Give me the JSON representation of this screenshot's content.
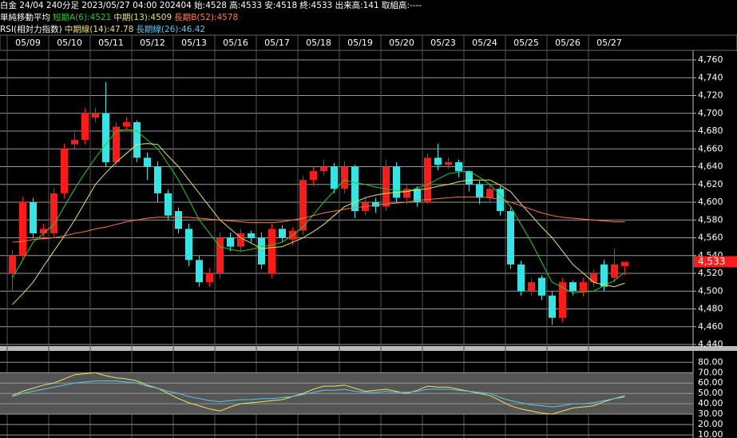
{
  "chart_data": [
    {
      "type": "candlestick",
      "title": "白金 24/04 240分足 2023/05/27 04:00 202404 始:4528 高:4533 安:4518 終:4533 出来高:141 取組高:----",
      "indicator_title": "単純移動平均",
      "up_color": "#ff1a1a",
      "down_color": "#33e6e6",
      "categories": [
        null,
        null,
        "05/09",
        null,
        null,
        null,
        "05/10",
        null,
        null,
        null,
        "05/11",
        null,
        null,
        null,
        "05/12",
        null,
        null,
        null,
        "05/13",
        null,
        null,
        null,
        "05/16",
        null,
        null,
        null,
        "05/17",
        null,
        null,
        null,
        "05/18",
        null,
        null,
        null,
        "05/19",
        null,
        null,
        null,
        "05/20",
        null,
        null,
        null,
        "05/23",
        null,
        null,
        null,
        "05/24",
        null,
        null,
        null,
        "05/25",
        null,
        null,
        null,
        "05/26",
        null,
        null,
        null,
        "05/27",
        null
      ],
      "open": [
        4520,
        4540,
        4600,
        4565,
        4565,
        4610,
        4665,
        4670,
        4695,
        4700,
        4645,
        4685,
        4690,
        4650,
        4640,
        4610,
        4590,
        4570,
        4535,
        4510,
        4520,
        4560,
        4550,
        4565,
        4560,
        4520,
        4570,
        4558,
        4568,
        4625,
        4635,
        4640,
        4615,
        4640,
        4590,
        4600,
        4595,
        4640,
        4605,
        4615,
        4600,
        4650,
        4642,
        4645,
        4635,
        4620,
        4605,
        4615,
        4590,
        4530,
        4500,
        4515,
        4495,
        4470,
        4510,
        4500,
        4510,
        4530,
        4515,
        4528
      ],
      "high": [
        4546,
        4606,
        4605,
        4576,
        4616,
        4666,
        4678,
        4706,
        4706,
        4735,
        4690,
        4696,
        4692,
        4656,
        4646,
        4614,
        4594,
        4576,
        4540,
        4526,
        4566,
        4566,
        4570,
        4568,
        4566,
        4576,
        4574,
        4572,
        4630,
        4640,
        4648,
        4644,
        4646,
        4642,
        4606,
        4605,
        4648,
        4645,
        4620,
        4618,
        4655,
        4666,
        4650,
        4648,
        4636,
        4624,
        4620,
        4618,
        4594,
        4534,
        4514,
        4518,
        4500,
        4515,
        4512,
        4515,
        4524,
        4535,
        4548,
        4533
      ],
      "low": [
        4500,
        4535,
        4560,
        4558,
        4560,
        4604,
        4660,
        4665,
        4690,
        4640,
        4640,
        4680,
        4645,
        4625,
        4600,
        4580,
        4565,
        4528,
        4505,
        4505,
        4515,
        4545,
        4545,
        4555,
        4525,
        4515,
        4555,
        4552,
        4563,
        4618,
        4630,
        4610,
        4610,
        4582,
        4585,
        4588,
        4590,
        4600,
        4598,
        4595,
        4598,
        4636,
        4638,
        4628,
        4612,
        4598,
        4600,
        4585,
        4525,
        4495,
        4495,
        4490,
        4462,
        4465,
        4495,
        4494,
        4505,
        4500,
        4510,
        4518
      ],
      "close": [
        4540,
        4600,
        4565,
        4570,
        4610,
        4660,
        4670,
        4700,
        4700,
        4645,
        4685,
        4690,
        4650,
        4640,
        4610,
        4585,
        4570,
        4535,
        4510,
        4520,
        4560,
        4550,
        4565,
        4560,
        4530,
        4570,
        4560,
        4568,
        4625,
        4635,
        4640,
        4615,
        4640,
        4590,
        4600,
        4595,
        4640,
        4605,
        4615,
        4600,
        4650,
        4642,
        4645,
        4635,
        4620,
        4605,
        4615,
        4590,
        4530,
        4500,
        4510,
        4495,
        4470,
        4510,
        4500,
        4510,
        4520,
        4505,
        4530,
        4533
      ],
      "series": [
        {
          "name": "短期A(6):4521",
          "color": "#22cc22",
          "values": [
            4515,
            4535,
            4555,
            4565,
            4575,
            4595,
            4615,
            4633,
            4650,
            4665,
            4680,
            4682,
            4680,
            4670,
            4660,
            4643,
            4625,
            4603,
            4580,
            4565,
            4550,
            4547,
            4545,
            4547,
            4550,
            4552,
            4555,
            4563,
            4572,
            4586,
            4600,
            4613,
            4625,
            4622,
            4620,
            4617,
            4615,
            4613,
            4612,
            4616,
            4620,
            4626,
            4632,
            4634,
            4635,
            4628,
            4620,
            4608,
            4595,
            4575,
            4555,
            4532,
            4510,
            4504,
            4498,
            4499,
            4500,
            4506,
            4512,
            4521
          ]
        },
        {
          "name": "中期(13):4509",
          "color": "#e6e65c",
          "values": [
            4485,
            4497,
            4510,
            4528,
            4545,
            4562,
            4580,
            4600,
            4620,
            4633,
            4645,
            4655,
            4665,
            4666,
            4665,
            4652,
            4640,
            4625,
            4610,
            4595,
            4580,
            4570,
            4560,
            4554,
            4548,
            4549,
            4550,
            4555,
            4560,
            4567,
            4575,
            4585,
            4595,
            4600,
            4605,
            4608,
            4610,
            4611,
            4612,
            4614,
            4615,
            4618,
            4620,
            4623,
            4625,
            4625,
            4625,
            4619,
            4612,
            4598,
            4585,
            4572,
            4560,
            4545,
            4530,
            4520,
            4510,
            4507,
            4505,
            4509
          ]
        },
        {
          "name": "長期B(52):4578",
          "color": "#ff7a3d",
          "values": [
            4555,
            4556,
            4558,
            4559,
            4560,
            4562,
            4565,
            4567,
            4570,
            4572,
            4575,
            4578,
            4580,
            4582,
            4583,
            4583,
            4583,
            4583,
            4582,
            4581,
            4580,
            4579,
            4578,
            4577,
            4577,
            4577,
            4578,
            4580,
            4582,
            4585,
            4588,
            4590,
            4592,
            4594,
            4595,
            4597,
            4598,
            4599,
            4600,
            4602,
            4603,
            4604,
            4605,
            4606,
            4606,
            4606,
            4605,
            4603,
            4600,
            4596,
            4592,
            4588,
            4585,
            4583,
            4582,
            4581,
            4580,
            4579,
            4578,
            4578
          ]
        }
      ],
      "ylim": [
        4440,
        4760
      ],
      "yticks": [
        {
          "value": 4440,
          "label": "4,440"
        },
        {
          "value": 4460,
          "label": "4,460"
        },
        {
          "value": 4480,
          "label": "4,480"
        },
        {
          "value": 4500,
          "label": "4,500"
        },
        {
          "value": 4520,
          "label": "4,520"
        },
        {
          "value": 4540,
          "label": "4,540"
        },
        {
          "value": 4560,
          "label": "4,560"
        },
        {
          "value": 4580,
          "label": "4,580"
        },
        {
          "value": 4600,
          "label": "4,600"
        },
        {
          "value": 4620,
          "label": "4,620"
        },
        {
          "value": 4640,
          "label": "4,640"
        },
        {
          "value": 4660,
          "label": "4,660"
        },
        {
          "value": 4680,
          "label": "4,680"
        },
        {
          "value": 4700,
          "label": "4,700"
        },
        {
          "value": 4720,
          "label": "4,720"
        },
        {
          "value": 4740,
          "label": "4,740"
        },
        {
          "value": 4760,
          "label": "4,760"
        }
      ],
      "last_price": {
        "value": 4533,
        "label": "4,533"
      },
      "grid": true
    },
    {
      "type": "line",
      "title": "RSI(相対力指数)",
      "series": [
        {
          "name": "中期線(14):47.78",
          "color": "#e6e65c",
          "values": [
            48,
            52,
            55,
            58,
            60,
            64,
            68,
            69,
            70,
            67,
            65,
            64,
            62,
            58,
            55,
            50,
            45,
            41,
            38,
            35,
            33,
            37,
            40,
            41,
            42,
            43,
            44,
            47,
            50,
            54,
            57,
            57,
            58,
            55,
            52,
            53,
            54,
            52,
            50,
            53,
            57,
            56,
            56,
            54,
            52,
            50,
            48,
            43,
            38,
            35,
            33,
            31,
            30,
            33,
            36,
            37,
            38,
            42,
            45,
            47.78
          ]
        },
        {
          "name": "長期線(26):46.42",
          "color": "#55c8f0",
          "values": [
            47,
            50,
            52,
            54,
            56,
            58,
            60,
            61,
            62,
            62,
            62,
            61,
            60,
            57,
            55,
            52,
            50,
            47,
            45,
            43,
            42,
            43,
            44,
            44,
            45,
            45,
            46,
            47,
            49,
            51,
            53,
            53,
            54,
            52,
            51,
            51,
            52,
            51,
            51,
            52,
            54,
            54,
            54,
            53,
            52,
            51,
            50,
            46,
            43,
            41,
            39,
            38,
            37,
            38,
            40,
            40,
            41,
            43,
            45,
            46.42
          ]
        }
      ],
      "ylim": [
        7,
        91
      ],
      "yticks": [
        {
          "value": 10,
          "label": "10.00"
        },
        {
          "value": 20,
          "label": "20.00"
        },
        {
          "value": 30,
          "label": "30.00"
        },
        {
          "value": 40,
          "label": "40.00"
        },
        {
          "value": 50,
          "label": "50.00"
        },
        {
          "value": 60,
          "label": "60.00"
        },
        {
          "value": 70,
          "label": "70.00"
        },
        {
          "value": 80,
          "label": "80.00"
        }
      ],
      "shade": [
        30,
        70
      ],
      "grid": true
    }
  ]
}
